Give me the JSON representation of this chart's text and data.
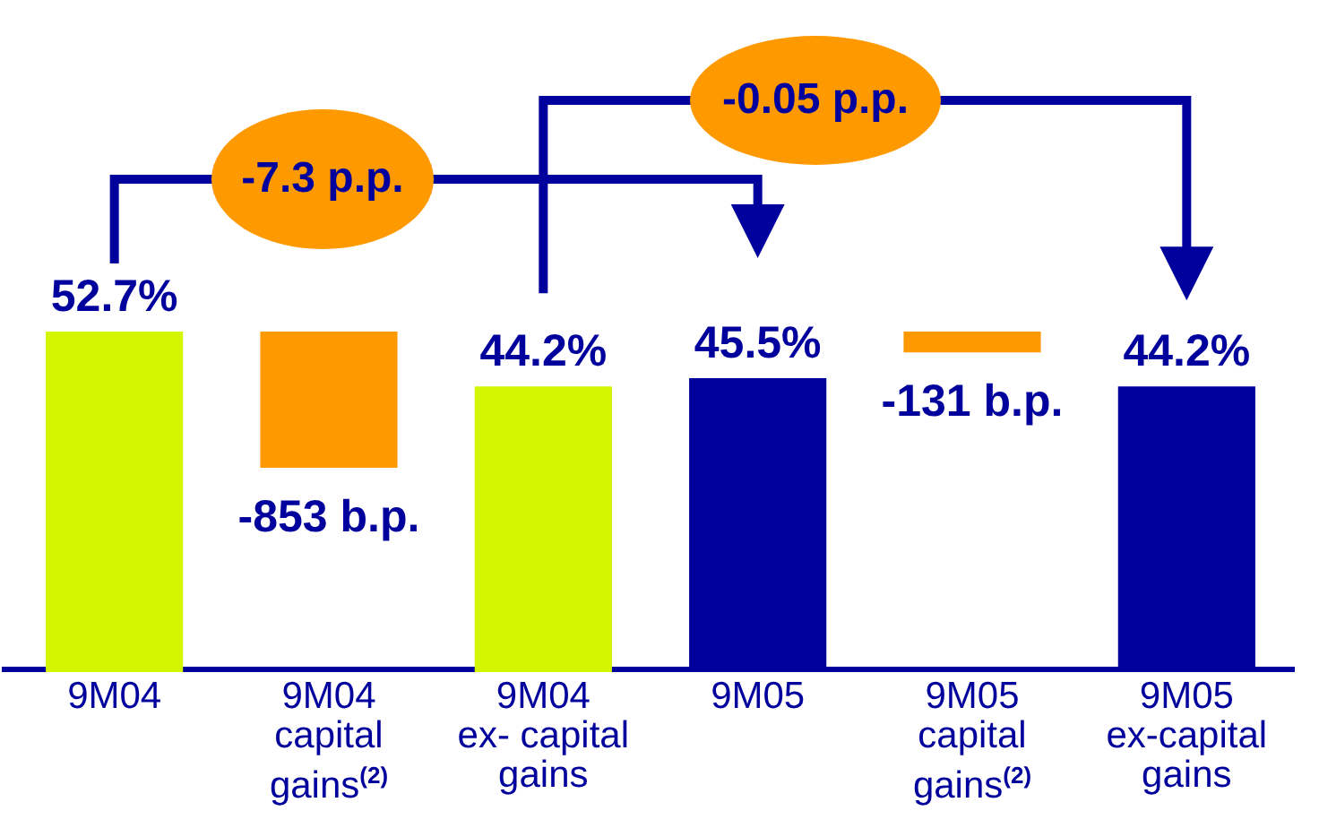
{
  "chart_data": {
    "type": "bar",
    "categories": [
      "9M04",
      "9M04\ncapital\ngains$^{(2)}$",
      "9M04\nex- capital\ngains",
      "9M05",
      "9M05\ncapital\ngains$^{(2)}$",
      "9M05\nex-capital\ngains"
    ],
    "series": [
      {
        "values": [
          52.7,
          null,
          44.2,
          45.5,
          null,
          44.2
        ],
        "colors": [
          "#d4f500",
          null,
          "#d4f500",
          "#00009c",
          null,
          "#00009c"
        ],
        "value_labels": [
          "52.7%",
          null,
          "44.2%",
          "45.5%",
          null,
          "44.2%"
        ]
      },
      {
        "axis": "y2",
        "values": [
          null,
          -853,
          null,
          null,
          -131,
          null
        ],
        "color": "#ff9900",
        "value_labels": [
          null,
          "-853 b.p.",
          null,
          null,
          "-131 b.p.",
          null
        ]
      }
    ],
    "annotations": [
      "-7.3 p.p.",
      "-0.05 p.p."
    ],
    "grid": false,
    "legend": false
  }
}
